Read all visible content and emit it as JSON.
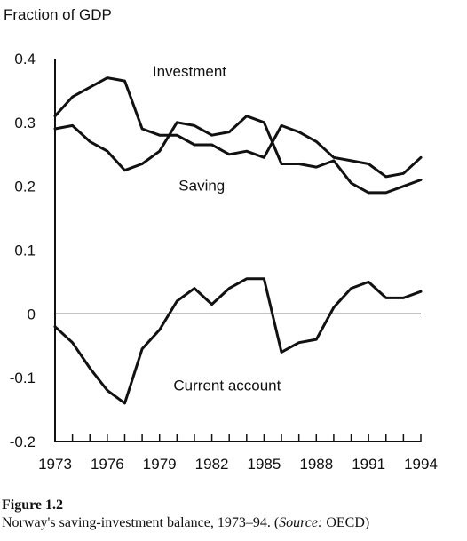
{
  "chart_data": {
    "type": "line",
    "ylabel": "Fraction of GDP",
    "ylim": [
      -0.2,
      0.4
    ],
    "yticks": [
      "0.4",
      "0.3",
      "0.2",
      "0.1",
      "0",
      "-0.1",
      "-0.2"
    ],
    "xlim": [
      1973,
      1994
    ],
    "xtick_labels": [
      "1973",
      "1976",
      "1979",
      "1982",
      "1985",
      "1988",
      "1991",
      "1994"
    ],
    "xtick_values": [
      1973,
      1976,
      1979,
      1982,
      1985,
      1988,
      1991,
      1994
    ],
    "grid": false,
    "zero_line": true,
    "x": [
      1973,
      1974,
      1975,
      1976,
      1977,
      1978,
      1979,
      1980,
      1981,
      1982,
      1983,
      1984,
      1985,
      1986,
      1987,
      1988,
      1989,
      1990,
      1991,
      1992,
      1993,
      1994
    ],
    "series": [
      {
        "name": "Investment",
        "label_year": 1978.6,
        "label_value": 0.372,
        "values": [
          0.31,
          0.34,
          0.355,
          0.37,
          0.365,
          0.29,
          0.28,
          0.28,
          0.265,
          0.265,
          0.25,
          0.255,
          0.245,
          0.295,
          0.285,
          0.27,
          0.245,
          0.24,
          0.235,
          0.215,
          0.22,
          0.245
        ]
      },
      {
        "name": "Saving",
        "label_year": 1980.1,
        "label_value": 0.193,
        "values": [
          0.29,
          0.295,
          0.27,
          0.255,
          0.225,
          0.235,
          0.255,
          0.3,
          0.295,
          0.28,
          0.285,
          0.31,
          0.3,
          0.235,
          0.235,
          0.23,
          0.24,
          0.205,
          0.19,
          0.19,
          0.2,
          0.21
        ]
      },
      {
        "name": "Current account",
        "label_year": 1979.8,
        "label_value": -0.12,
        "values": [
          -0.02,
          -0.045,
          -0.085,
          -0.12,
          -0.14,
          -0.055,
          -0.025,
          0.02,
          0.04,
          0.015,
          0.04,
          0.055,
          0.055,
          -0.06,
          -0.045,
          -0.04,
          0.01,
          0.04,
          0.05,
          0.025,
          0.025,
          0.035
        ]
      }
    ]
  },
  "figure": {
    "label": "Figure 1.2",
    "caption_prefix": "Norway's saving-investment balance, 1973–94. (",
    "caption_source": "Source:",
    "caption_suffix": " OECD)"
  }
}
